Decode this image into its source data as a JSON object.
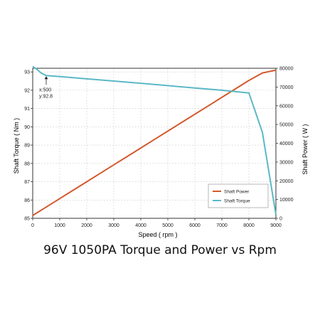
{
  "caption": "96V 1050PA Torque and Power vs Rpm",
  "chart_data": {
    "type": "line",
    "title": "",
    "xlabel": "Speed ( rpm )",
    "ylabel_left": "Shaft Torque ( Nm )",
    "ylabel_right": "Shaft Power ( W )",
    "xlim": [
      0,
      9000
    ],
    "ylim_left": [
      85,
      93.2
    ],
    "ylim_right": [
      0,
      80000
    ],
    "x_ticks": [
      "0",
      "1000",
      "2000",
      "3000",
      "4000",
      "5000",
      "6000",
      "7000",
      "8000",
      "9000"
    ],
    "y_left_ticks": [
      "85",
      "86",
      "87",
      "88",
      "89",
      "90",
      "91",
      "92",
      "93"
    ],
    "y_right_ticks": [
      "0",
      "10000",
      "20000",
      "30000",
      "40000",
      "50000",
      "60000",
      "70000",
      "80000"
    ],
    "grid": true,
    "legend_position": "bottom-right",
    "series": [
      {
        "name": "Shaft Power",
        "axis": "right",
        "color": "#d35a2c",
        "x": [
          0,
          500,
          1000,
          1500,
          2000,
          2500,
          3000,
          3500,
          4000,
          4500,
          5000,
          5500,
          6000,
          6500,
          7000,
          7500,
          8000,
          8500,
          9000
        ],
        "y": [
          1500,
          6000,
          10500,
          15000,
          19500,
          24000,
          28500,
          33000,
          37500,
          42000,
          46500,
          51000,
          55500,
          60000,
          64500,
          69000,
          73500,
          77500,
          79000
        ]
      },
      {
        "name": "Shaft Torque",
        "axis": "left",
        "color": "#5bb8c6",
        "x": [
          0,
          150,
          300,
          500,
          1000,
          2000,
          3000,
          4000,
          5000,
          6000,
          7000,
          8000,
          8500,
          9000
        ],
        "y": [
          93.3,
          93.15,
          92.95,
          92.8,
          92.75,
          92.62,
          92.5,
          92.38,
          92.25,
          92.12,
          92.0,
          91.85,
          89.7,
          85.2
        ]
      }
    ],
    "annotations": [
      {
        "text_x": "x:500",
        "text_y": "y:92.8",
        "x": 500,
        "y": 92.8
      }
    ]
  }
}
